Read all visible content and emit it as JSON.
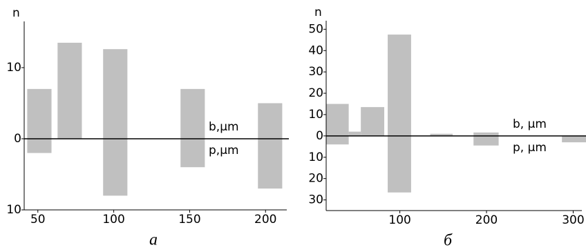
{
  "chart_data": [
    {
      "type": "bar",
      "ylabel": "n",
      "caption": "a",
      "xlim": [
        41,
        214
      ],
      "xticks": [
        50,
        100,
        150,
        200
      ],
      "ylim": [
        -10,
        16.5
      ],
      "yticks": [
        {
          "value": -10,
          "label": "10"
        },
        0,
        10
      ],
      "x_ranges": [
        [
          43,
          59
        ],
        [
          63,
          79
        ],
        [
          93,
          109
        ],
        [
          144,
          160
        ],
        [
          195,
          211
        ]
      ],
      "series": [
        {
          "name": "b,µm",
          "color": "#c0c0c0",
          "values": [
            7,
            13.5,
            12.6,
            7,
            5
          ]
        },
        {
          "name": "p,µm",
          "color": "#c0c0c0",
          "values": [
            -2,
            null,
            -8,
            -4,
            -7
          ]
        }
      ]
    },
    {
      "type": "bar",
      "ylabel": "n",
      "caption": "б",
      "xlim": [
        15,
        310
      ],
      "xticks": [
        100,
        200,
        300
      ],
      "ylim": [
        -35,
        54
      ],
      "yticks": [
        {
          "value": -30,
          "label": "30"
        },
        {
          "value": -20,
          "label": "20"
        },
        {
          "value": -10,
          "label": "10"
        },
        0,
        10,
        20,
        30,
        40,
        50
      ],
      "x_ranges": [
        [
          15,
          41
        ],
        [
          41,
          55
        ],
        [
          55,
          82
        ],
        [
          86,
          113
        ],
        [
          135,
          161
        ],
        [
          185,
          214
        ],
        [
          287,
          315
        ]
      ],
      "series": [
        {
          "name": "b, µm",
          "color": "#c0c0c0",
          "values": [
            15,
            2,
            13.5,
            47.5,
            1,
            1.6,
            null
          ]
        },
        {
          "name": "p, µm",
          "color": "#c0c0c0",
          "values": [
            -4,
            null,
            null,
            -26.5,
            null,
            -4.5,
            -3
          ]
        }
      ]
    }
  ]
}
